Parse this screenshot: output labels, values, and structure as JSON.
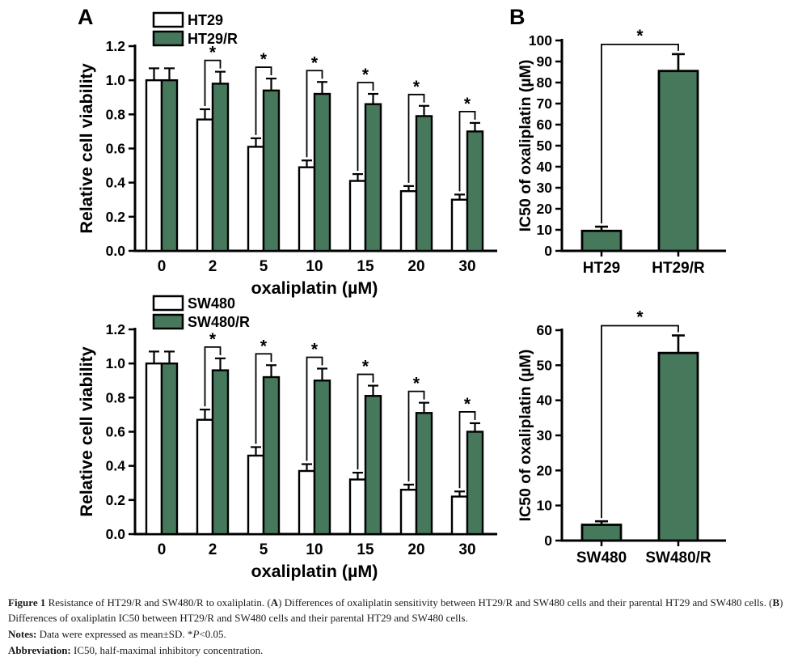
{
  "panel_labels": {
    "a": "A",
    "b": "B"
  },
  "colors": {
    "bar_green": "#46795C",
    "bar_white": "#ffffff",
    "axis": "#000000"
  },
  "chart_data": [
    {
      "id": "viability_ht29",
      "type": "bar",
      "panel": "A",
      "position": "top-left",
      "xlabel": "oxaliplatin (µM)",
      "ylabel": "Relative cell viability",
      "ylim": [
        0,
        1.2
      ],
      "yticks": [
        "0.0",
        "0.2",
        "0.4",
        "0.6",
        "0.8",
        "1.0",
        "1.2"
      ],
      "categories": [
        "0",
        "2",
        "5",
        "10",
        "15",
        "20",
        "30"
      ],
      "series": [
        {
          "name": "HT29",
          "fill": "white",
          "values": [
            1.0,
            0.77,
            0.61,
            0.49,
            0.41,
            0.35,
            0.3
          ],
          "errors": [
            0.07,
            0.06,
            0.05,
            0.04,
            0.04,
            0.03,
            0.03
          ]
        },
        {
          "name": "HT29/R",
          "fill": "green",
          "values": [
            1.0,
            0.98,
            0.94,
            0.92,
            0.86,
            0.79,
            0.7
          ],
          "errors": [
            0.07,
            0.07,
            0.07,
            0.07,
            0.06,
            0.06,
            0.05
          ]
        }
      ],
      "legend_position": "top",
      "sig_marker": "*",
      "sig_categories": [
        "2",
        "5",
        "10",
        "15",
        "20",
        "30"
      ]
    },
    {
      "id": "viability_sw480",
      "type": "bar",
      "panel": "A",
      "position": "bottom-left",
      "xlabel": "oxaliplatin (µM)",
      "ylabel": "Relative cell viability",
      "ylim": [
        0,
        1.2
      ],
      "yticks": [
        "0.0",
        "0.2",
        "0.4",
        "0.6",
        "0.8",
        "1.0",
        "1.2"
      ],
      "categories": [
        "0",
        "2",
        "5",
        "10",
        "15",
        "20",
        "30"
      ],
      "series": [
        {
          "name": "SW480",
          "fill": "white",
          "values": [
            1.0,
            0.67,
            0.46,
            0.37,
            0.32,
            0.26,
            0.22
          ],
          "errors": [
            0.07,
            0.06,
            0.05,
            0.04,
            0.04,
            0.03,
            0.03
          ]
        },
        {
          "name": "SW480/R",
          "fill": "green",
          "values": [
            1.0,
            0.96,
            0.92,
            0.9,
            0.81,
            0.71,
            0.6
          ],
          "errors": [
            0.07,
            0.07,
            0.07,
            0.07,
            0.06,
            0.06,
            0.05
          ]
        }
      ],
      "legend_position": "top",
      "sig_marker": "*",
      "sig_categories": [
        "2",
        "5",
        "10",
        "15",
        "20",
        "30"
      ]
    },
    {
      "id": "ic50_ht29",
      "type": "bar",
      "panel": "B",
      "position": "top-right",
      "ylabel": "IC50 of oxaliplatin (µM)",
      "ylim": [
        0,
        100
      ],
      "yticks": [
        "0",
        "10",
        "20",
        "30",
        "40",
        "50",
        "60",
        "70",
        "80",
        "90",
        "100"
      ],
      "categories": [
        "HT29",
        "HT29/R"
      ],
      "values": [
        9.5,
        85.5
      ],
      "errors": [
        2,
        8
      ],
      "sig_marker": "*"
    },
    {
      "id": "ic50_sw480",
      "type": "bar",
      "panel": "B",
      "position": "bottom-right",
      "ylabel": "IC50 of oxaliplatin (µM)",
      "ylim": [
        0,
        60
      ],
      "yticks": [
        "0",
        "10",
        "20",
        "30",
        "40",
        "50",
        "60"
      ],
      "categories": [
        "SW480",
        "SW480/R"
      ],
      "values": [
        4.5,
        53.5
      ],
      "errors": [
        1,
        5
      ],
      "sig_marker": "*"
    }
  ],
  "caption": {
    "lines": [
      [
        {
          "t": "Figure 1",
          "s": "b"
        },
        {
          "t": " Resistance of HT29/R and SW480/R to oxaliplatin. (",
          "s": "n"
        },
        {
          "t": "A",
          "s": "b"
        },
        {
          "t": ") Differences of oxaliplatin sensitivity between HT29/R and SW480 cells and their parental HT29 and SW480 cells. (",
          "s": "n"
        },
        {
          "t": "B",
          "s": "b"
        },
        {
          "t": ") Differences of oxaliplatin IC50 between HT29/R and SW480 cells and their parental HT29 and SW480 cells.",
          "s": "n"
        }
      ],
      [
        {
          "t": "Notes:",
          "s": "b"
        },
        {
          "t": " Data were expressed as mean±SD. *",
          "s": "n"
        },
        {
          "t": "P",
          "s": "i"
        },
        {
          "t": "<0.05.",
          "s": "n"
        }
      ],
      [
        {
          "t": "Abbreviation:",
          "s": "b"
        },
        {
          "t": " IC50, half-maximal inhibitory concentration.",
          "s": "n"
        }
      ]
    ]
  }
}
